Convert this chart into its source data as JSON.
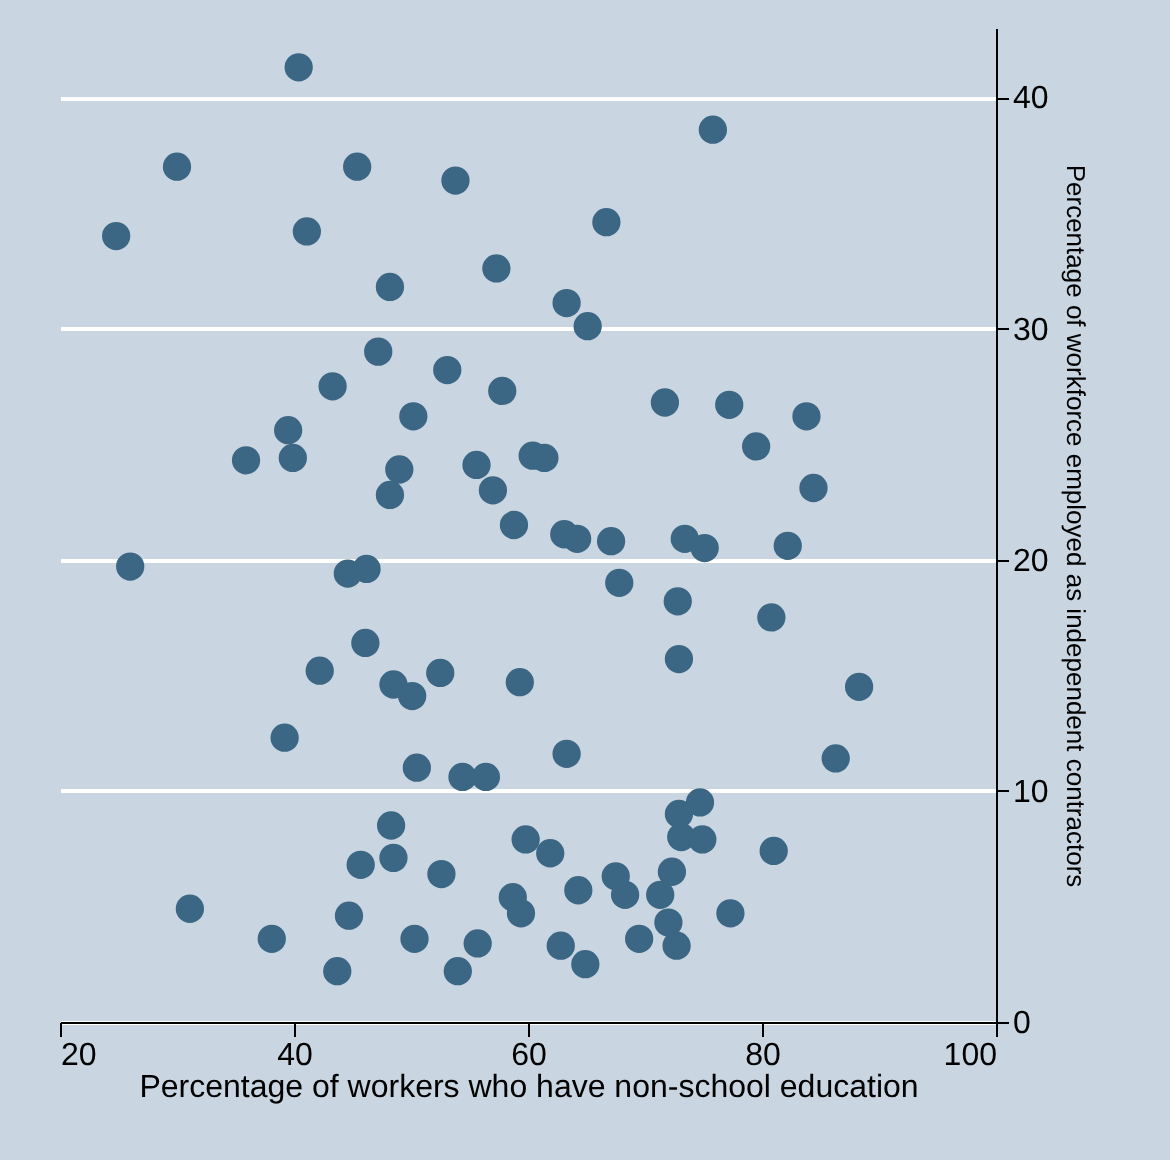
{
  "chart_data": {
    "type": "scatter",
    "xlabel": "Percentage of workers who have non-school education",
    "ylabel": "Percentage of workforce employed as independent contractors",
    "x": [
      40.4,
      30.0,
      45.4,
      53.8,
      24.8,
      41.1,
      57.3,
      48.2,
      47.2,
      43.3,
      53.1,
      57.8,
      50.2,
      39.5,
      35.9,
      39.9,
      49.0,
      48.2,
      55.6,
      57.0,
      58.8,
      60.4,
      61.4,
      75.8,
      66.7,
      63.3,
      65.1,
      71.7,
      77.2,
      83.8,
      79.5,
      84.4,
      63.1,
      64.2,
      67.1,
      73.4,
      75.1,
      82.2,
      26.0,
      44.6,
      46.2,
      46.1,
      42.2,
      48.5,
      50.1,
      52.5,
      59.3,
      39.2,
      50.5,
      54.4,
      56.4,
      48.3,
      59.8,
      61.9,
      45.7,
      48.5,
      52.6,
      31.1,
      44.7,
      58.7,
      59.4,
      38.1,
      50.3,
      55.7,
      43.7,
      54.0,
      67.8,
      72.8,
      80.8,
      72.9,
      88.3,
      63.3,
      86.3,
      74.7,
      72.9,
      73.1,
      74.9,
      81.0,
      64.3,
      67.5,
      68.3,
      72.3,
      71.3,
      77.3,
      72.0,
      69.5,
      72.7,
      62.8,
      64.9
    ],
    "values": [
      41.3,
      37.0,
      37.0,
      36.4,
      34.0,
      34.2,
      32.6,
      31.8,
      29.0,
      27.5,
      28.2,
      27.3,
      26.2,
      25.6,
      24.3,
      24.4,
      23.9,
      22.8,
      24.1,
      23.0,
      21.5,
      24.5,
      24.4,
      38.6,
      34.6,
      31.1,
      30.1,
      26.8,
      26.7,
      26.2,
      24.9,
      23.1,
      21.1,
      20.9,
      20.8,
      20.9,
      20.5,
      20.6,
      19.7,
      19.4,
      19.6,
      16.4,
      15.2,
      14.6,
      14.1,
      15.1,
      14.7,
      12.3,
      11.0,
      10.6,
      10.6,
      8.5,
      7.9,
      7.3,
      6.8,
      7.1,
      6.4,
      4.9,
      4.6,
      5.4,
      4.7,
      3.6,
      3.6,
      3.4,
      2.2,
      2.2,
      19.0,
      18.2,
      17.5,
      15.7,
      14.5,
      11.6,
      11.4,
      9.5,
      9.0,
      8.0,
      7.9,
      7.4,
      5.7,
      6.3,
      5.5,
      6.5,
      5.5,
      4.7,
      4.3,
      3.6,
      3.3,
      3.3,
      2.5
    ],
    "color": "#3b6784",
    "marker": "circle",
    "xlim": [
      20,
      100
    ],
    "ylim": [
      0,
      43
    ],
    "xticks": [
      20,
      40,
      60,
      80,
      100
    ],
    "yticks": [
      0,
      10,
      20,
      30,
      40
    ],
    "grid": "y"
  }
}
